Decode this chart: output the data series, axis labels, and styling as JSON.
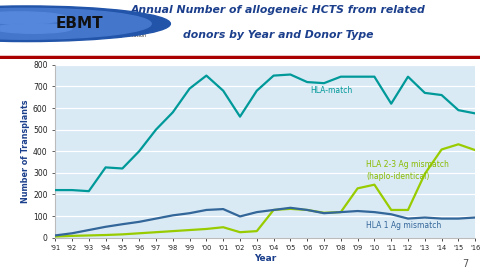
{
  "years": [
    1991,
    1992,
    1993,
    1994,
    1995,
    1996,
    1997,
    1998,
    1999,
    2000,
    2001,
    2002,
    2003,
    2004,
    2005,
    2006,
    2007,
    2008,
    2009,
    2010,
    2011,
    2012,
    2013,
    2014,
    2015,
    2016
  ],
  "hla_match": [
    220,
    220,
    215,
    325,
    320,
    400,
    500,
    580,
    690,
    750,
    680,
    560,
    680,
    750,
    755,
    720,
    715,
    745,
    745,
    745,
    620,
    745,
    670,
    660,
    590,
    575
  ],
  "hla_23_mismatch": [
    5,
    8,
    10,
    12,
    15,
    20,
    25,
    30,
    35,
    40,
    48,
    25,
    30,
    128,
    133,
    128,
    115,
    118,
    228,
    245,
    128,
    128,
    295,
    408,
    432,
    405
  ],
  "hla_1_mismatch": [
    10,
    20,
    35,
    50,
    62,
    73,
    88,
    103,
    113,
    128,
    132,
    98,
    118,
    128,
    138,
    128,
    113,
    118,
    123,
    118,
    108,
    88,
    93,
    88,
    88,
    93
  ],
  "hla_match_color": "#009999",
  "hla_23_color": "#99CC00",
  "hla_1_color": "#336699",
  "bg_color": "#daeaf5",
  "grid_color": "#ffffff",
  "title_line1": "Annual Number of allogeneic HCTS from related",
  "title_line2": "donors by Year and Donor Type",
  "ylabel": "Number of Transplants",
  "xlabel": "Year",
  "ylim": [
    0,
    800
  ],
  "yticks": [
    0,
    100,
    200,
    300,
    400,
    500,
    600,
    700,
    800
  ],
  "label_hla_match": "HLA-match",
  "label_hla_23": "HLA 2-3 Ag mismatch\n(haplo-identical)",
  "label_hla_1": "HLA 1 Ag mismatch",
  "title_color": "#1B3F8C",
  "axis_label_color": "#1B3F8C",
  "separator_color": "#AA0000",
  "page_num": "7",
  "year_labels": [
    "'91",
    "'92",
    "'93",
    "'94",
    "'95",
    "'96",
    "'97",
    "'98",
    "'99",
    "'00",
    "'01",
    "'02",
    "'03",
    "'04",
    "'05",
    "'06",
    "'07",
    "'08",
    "'09",
    "'10",
    "'11",
    "'12",
    "'13",
    "'14",
    "'15",
    "'16"
  ]
}
